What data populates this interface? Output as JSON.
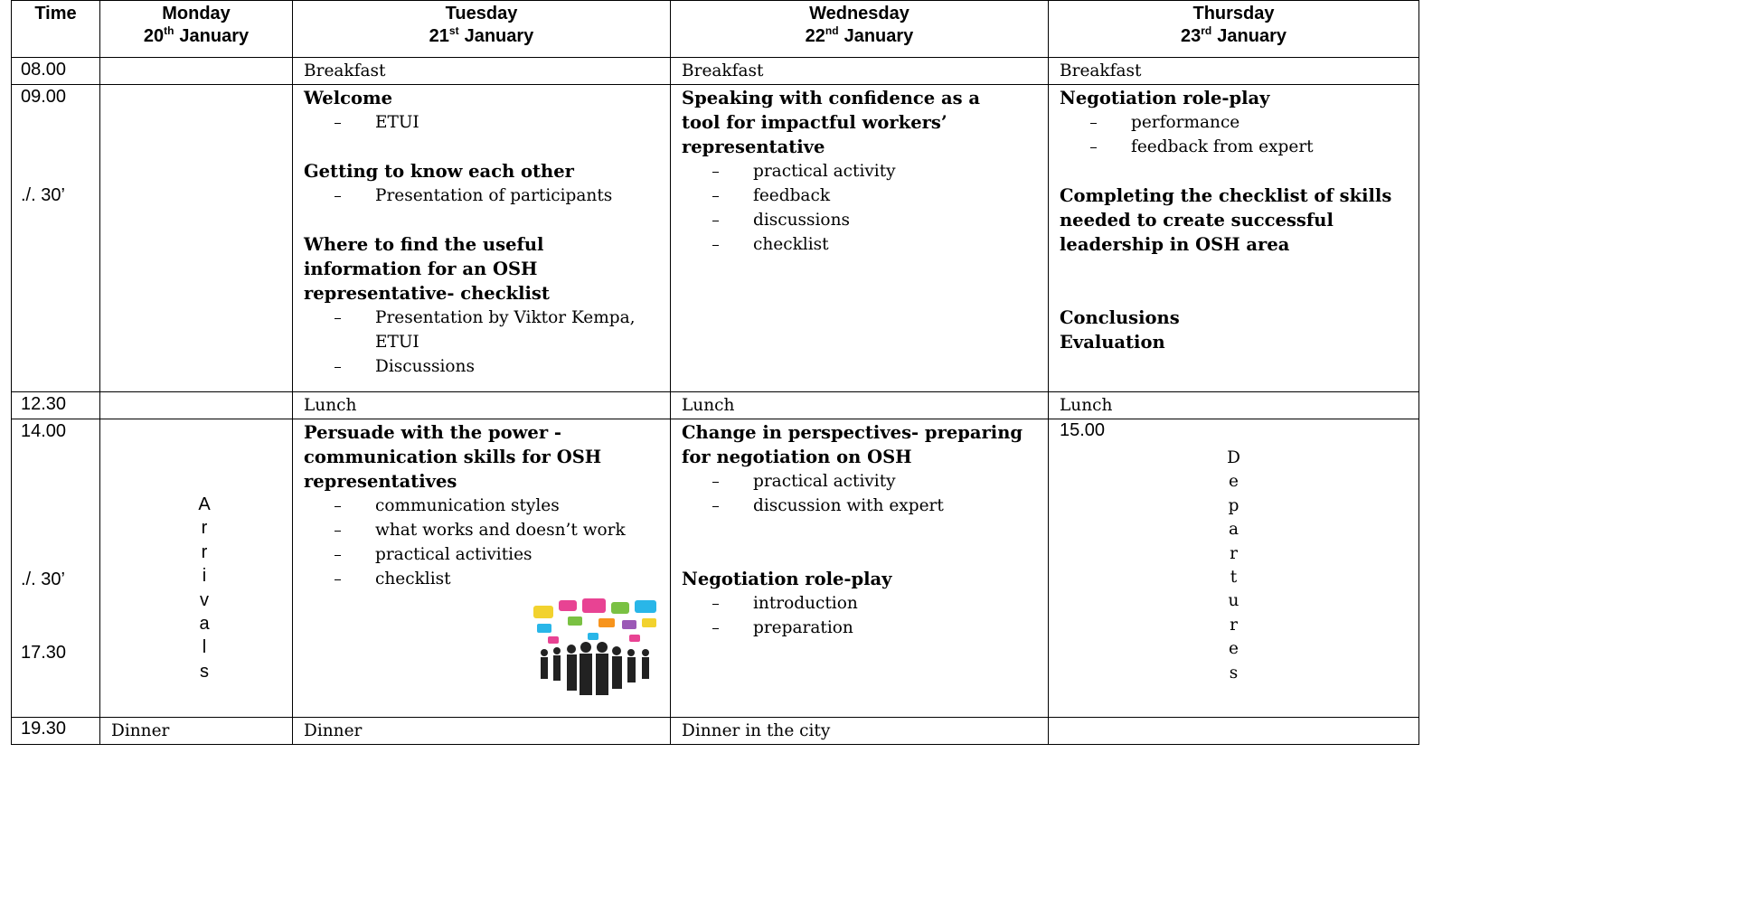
{
  "table": {
    "header": [
      {
        "day": "Time"
      },
      {
        "day": "Monday",
        "date": "20",
        "suffix": "th",
        "month": "January"
      },
      {
        "day": "Tuesday",
        "date": "21",
        "suffix": "st",
        "month": "January"
      },
      {
        "day": "Wednesday",
        "date": "22",
        "suffix": "nd",
        "month": "January"
      },
      {
        "day": "Thursday",
        "date": "23",
        "suffix": "rd",
        "month": "January"
      }
    ],
    "rows": [
      {
        "time": [
          "08.00"
        ],
        "cells": [
          {},
          {
            "text": "Breakfast"
          },
          {
            "text": "Breakfast"
          },
          {
            "text": "Breakfast"
          }
        ]
      },
      {
        "time": [
          "09.00",
          "./. 30’"
        ],
        "cells": [
          {},
          {
            "groups": [
              {
                "heading": "Welcome",
                "bullets": [
                  "ETUI"
                ]
              },
              {
                "heading": "Getting to know each other",
                "bullets": [
                  "Presentation of participants"
                ]
              },
              {
                "heading": "Where to find the useful information for an OSH representative- checklist",
                "bullets": [
                  "Presentation by Viktor Kempa, ETUI",
                  "Discussions"
                ]
              }
            ]
          },
          {
            "groups": [
              {
                "heading": "Speaking with confidence as a tool for impactful workers’ representative",
                "bullets": [
                  "practical activity",
                  "feedback",
                  "discussions",
                  "checklist"
                ]
              }
            ]
          },
          {
            "groups": [
              {
                "heading": "Negotiation role-play",
                "bullets": [
                  "performance",
                  "feedback from expert"
                ]
              },
              {
                "heading": "Completing the checklist of skills needed to create successful leadership in OSH area"
              },
              {
                "lines": [
                  "Conclusions",
                  "Evaluation"
                ]
              }
            ]
          }
        ]
      },
      {
        "time": [
          "12.30"
        ],
        "cells": [
          {},
          {
            "text": "Lunch"
          },
          {
            "text": "Lunch"
          },
          {
            "text": "Lunch"
          }
        ]
      },
      {
        "time": [
          "14.00",
          "./. 30’",
          "17.30"
        ],
        "cells": [
          {
            "letters": [
              "A",
              "r",
              "r",
              "i",
              "v",
              "a",
              "l",
              "s"
            ]
          },
          {
            "groups": [
              {
                "heading": "Persuade with the power - communication skills for OSH representatives",
                "bullets": [
                  "communication styles",
                  "what works and doesn’t work",
                  "practical activities",
                  "checklist"
                ]
              }
            ]
          },
          {
            "groups": [
              {
                "heading": "Change in perspectives- preparing for negotiation on OSH",
                "bullets": [
                  "practical activity",
                  "discussion with expert"
                ]
              },
              {
                "heading": "Negotiation role-play",
                "bullets": [
                  "introduction",
                  "preparation"
                ]
              }
            ]
          },
          {
            "time": "15.00",
            "letters": [
              "D",
              "e",
              "p",
              "a",
              "r",
              "t",
              "u",
              "r",
              "e",
              "s"
            ]
          }
        ]
      },
      {
        "time": [
          "19.30"
        ],
        "cells": [
          {
            "text": "Dinner"
          },
          {
            "text": "Dinner"
          },
          {
            "text": "Dinner in the city"
          },
          {}
        ]
      }
    ]
  }
}
